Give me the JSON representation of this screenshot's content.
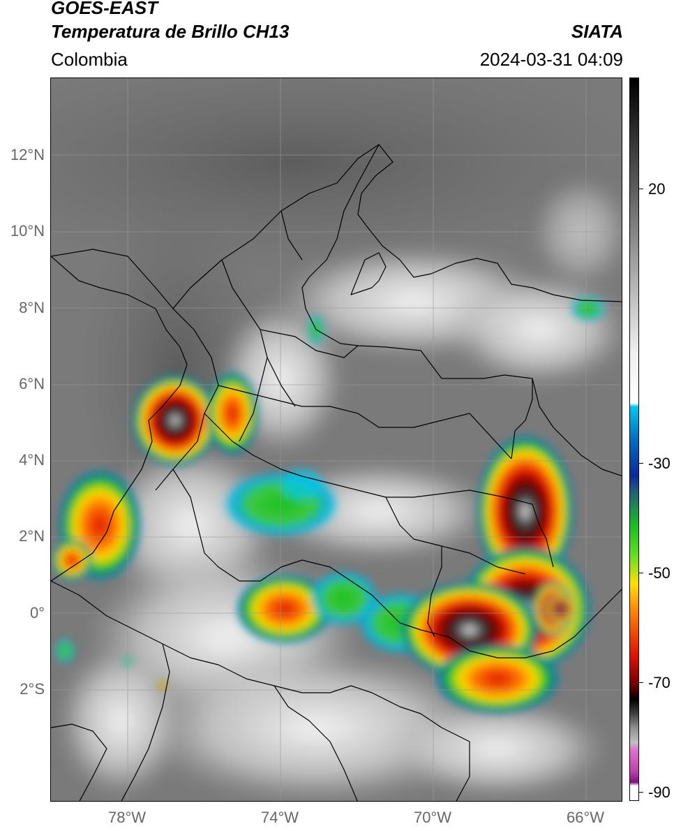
{
  "header": {
    "title_line1": "GOES-EAST",
    "title_line2": "Temperatura de Brillo CH13",
    "organization": "SIATA",
    "region": "Colombia",
    "timestamp": "2024-03-31 04:09"
  },
  "map": {
    "lat_labels": [
      "12°N",
      "10°N",
      "8°N",
      "6°N",
      "4°N",
      "2°N",
      "0°",
      "2°S"
    ],
    "lon_labels": [
      "78°W",
      "74°W",
      "70°W",
      "66°W"
    ],
    "background_color": "#7d7d7d",
    "border_color": "#000000"
  },
  "colorbar": {
    "tick_labels": [
      "20",
      "-30",
      "-50",
      "-70",
      "-90"
    ],
    "colors": {
      "warm_gray": "#555555",
      "light": "#f0f0f0",
      "cyan": "#00c8f0",
      "blue": "#0a2a9a",
      "green": "#18c020",
      "yellow": "#ffe000",
      "orange": "#ff8000",
      "red": "#e01000",
      "dark_red": "#700000",
      "black": "#000000",
      "magenta": "#e070d0",
      "purple": "#801080"
    }
  }
}
